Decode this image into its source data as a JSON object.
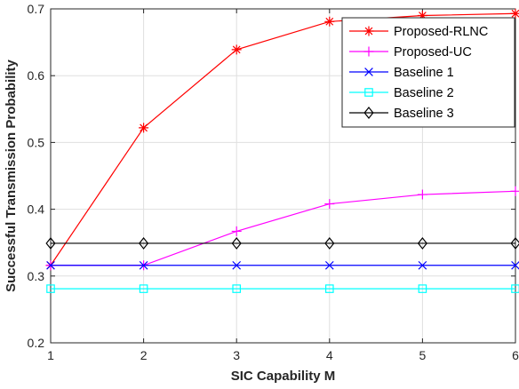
{
  "chart_data": {
    "type": "line",
    "title": "",
    "xlabel": "SIC Capability M",
    "ylabel": "Successful Transmission Probability",
    "x": [
      1,
      2,
      3,
      4,
      5,
      6
    ],
    "xlim": [
      1,
      6
    ],
    "ylim": [
      0.2,
      0.7
    ],
    "xticks": [
      "1",
      "2",
      "3",
      "4",
      "5",
      "6"
    ],
    "yticks": [
      "0.2",
      "0.3",
      "0.4",
      "0.5",
      "0.6",
      "0.7"
    ],
    "grid": true,
    "legend_position": "top-right",
    "series": [
      {
        "name": "Proposed-RLNC",
        "color": "#ff0000",
        "marker": "asterisk",
        "values": [
          0.316,
          0.522,
          0.639,
          0.681,
          0.69,
          0.693
        ]
      },
      {
        "name": "Proposed-UC",
        "color": "#ff00ff",
        "marker": "plus",
        "values": [
          0.316,
          0.316,
          0.367,
          0.408,
          0.422,
          0.427
        ]
      },
      {
        "name": "Baseline 1",
        "color": "#0000ff",
        "marker": "x",
        "values": [
          0.316,
          0.316,
          0.316,
          0.316,
          0.316,
          0.316
        ]
      },
      {
        "name": "Baseline 2",
        "color": "#00ffff",
        "marker": "square",
        "values": [
          0.281,
          0.281,
          0.281,
          0.281,
          0.281,
          0.281
        ]
      },
      {
        "name": "Baseline 3",
        "color": "#000000",
        "marker": "diamond",
        "values": [
          0.349,
          0.349,
          0.349,
          0.349,
          0.349,
          0.349
        ]
      }
    ]
  }
}
